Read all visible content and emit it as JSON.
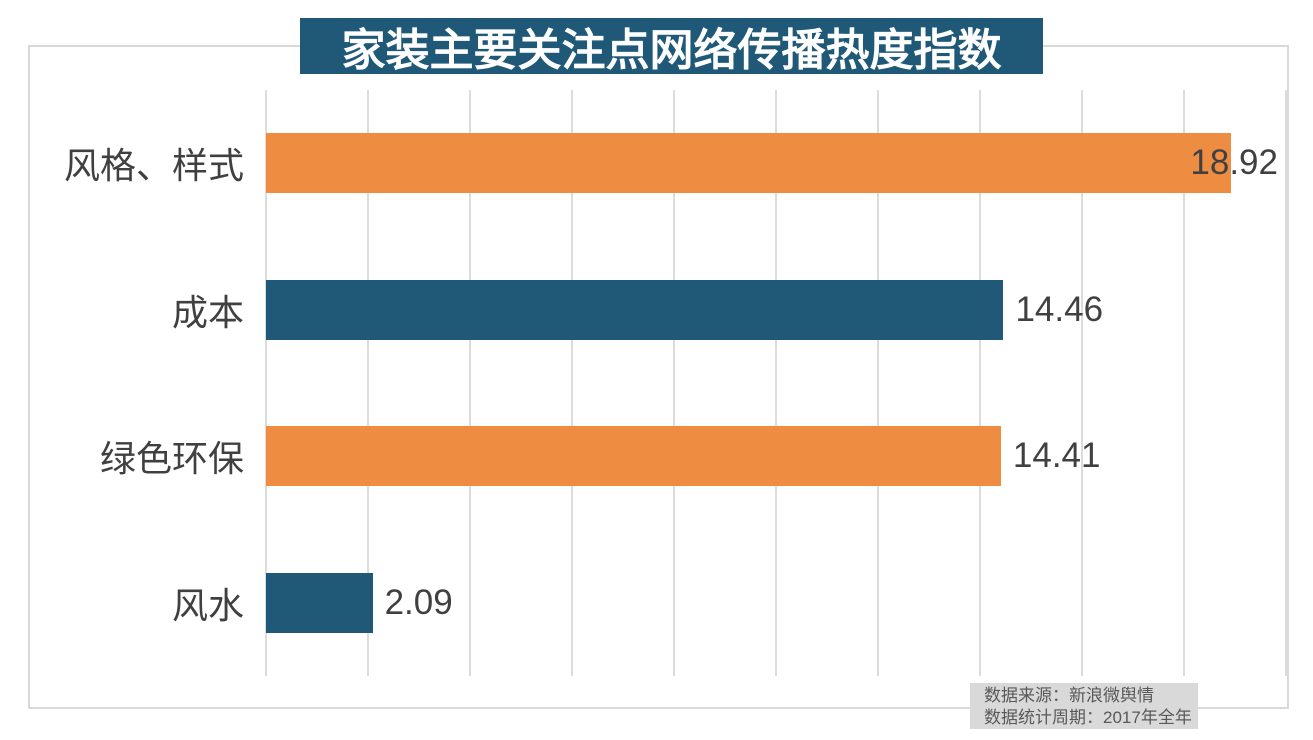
{
  "title": "家装主要关注点网络传播热度指数",
  "chart_data": {
    "type": "bar",
    "orientation": "horizontal",
    "title": "家装主要关注点网络传播热度指数",
    "categories": [
      "风格、样式",
      "成本",
      "绿色环保",
      "风水"
    ],
    "values": [
      18.92,
      14.46,
      14.41,
      2.09
    ],
    "data_labels": [
      "18.92",
      "14.46",
      "14.41",
      "2.09"
    ],
    "xlim": [
      0,
      20
    ],
    "gridline_step": 2,
    "grid": true,
    "legend_position": "none",
    "axis_tick_labels_visible": false,
    "bar_colors": [
      "#ee8c42",
      "#1f5977",
      "#ee8c42",
      "#1f5977"
    ]
  },
  "source_note": {
    "line1": "数据来源：新浪微舆情",
    "line2": "数据统计周期：2017年全年"
  },
  "colors": {
    "banner_bg": "#1f5977",
    "banner_text": "#ffffff",
    "bar_orange": "#ee8c42",
    "bar_teal": "#1f5977",
    "gridline": "#dcdcdc",
    "chart_border": "#d9d9d9",
    "label_text": "#404040",
    "source_bg": "#d9d9d9",
    "source_text": "#595959"
  }
}
